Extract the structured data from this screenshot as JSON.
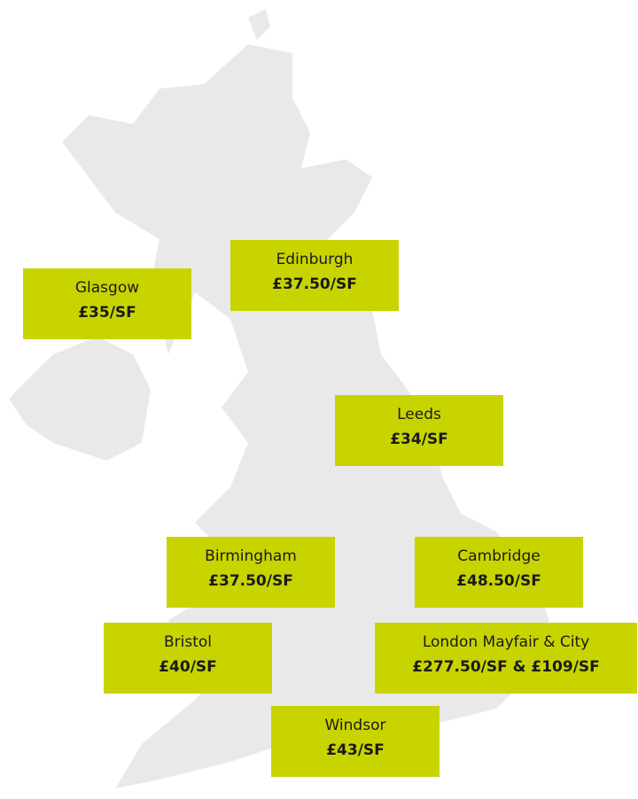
{
  "locations": [
    {
      "name": "Glasgow",
      "price": "£35/SF"
    },
    {
      "name": "Edinburgh",
      "price": "£37.50/SF"
    },
    {
      "name": "Leeds",
      "price": "£34/SF"
    },
    {
      "name": "Birmingham",
      "price": "£37.50/SF"
    },
    {
      "name": "Cambridge",
      "price": "£48.50/SF"
    },
    {
      "name": "Bristol",
      "price": "£40/SF"
    },
    {
      "name": "London Mayfair & City",
      "price": "£277.50/SF & £109/SF"
    },
    {
      "name": "Windsor",
      "price": "£43/SF"
    }
  ]
}
